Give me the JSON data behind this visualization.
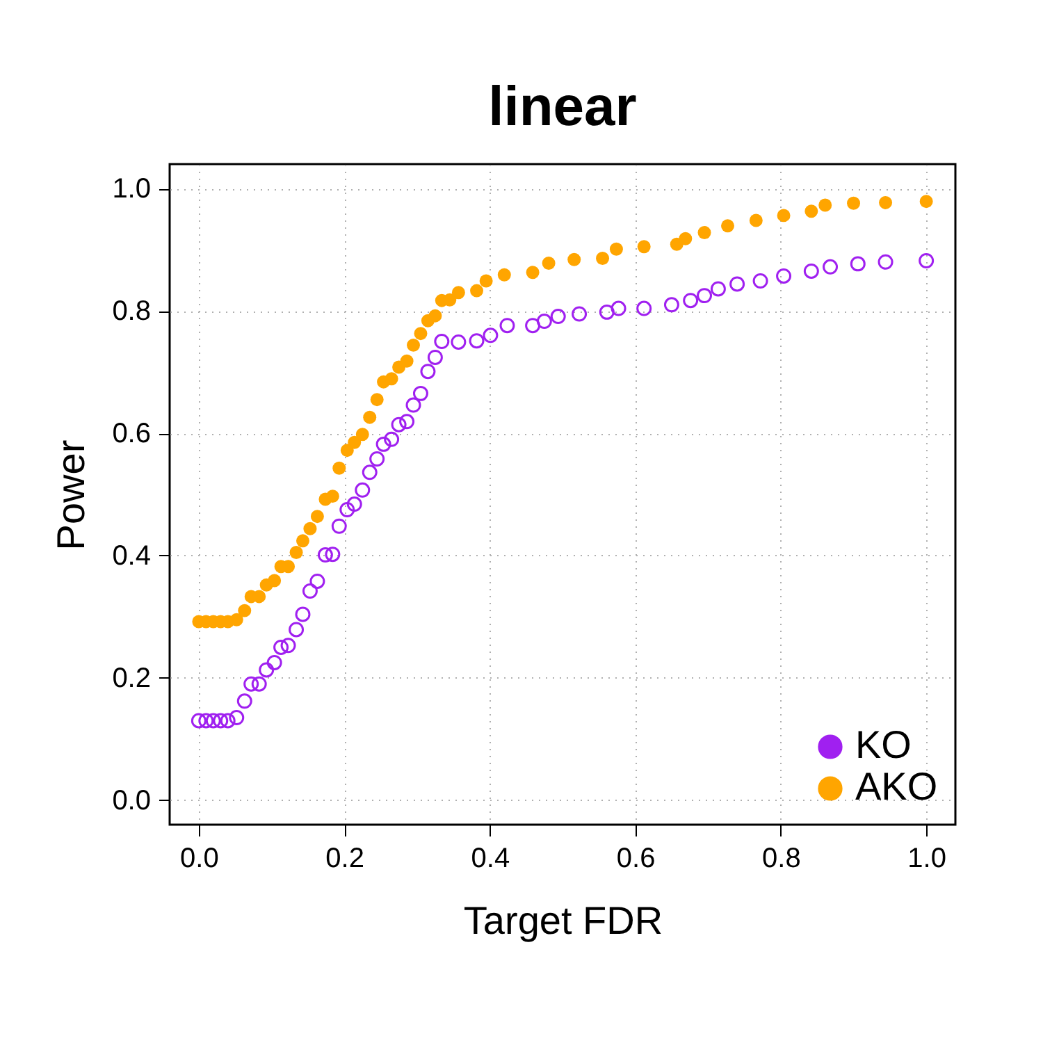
{
  "chart_data": {
    "type": "scatter",
    "title": "linear",
    "xlabel": "Target FDR",
    "ylabel": "Power",
    "xlim": [
      -0.04,
      1.04
    ],
    "ylim": [
      -0.04,
      1.04
    ],
    "xticks": [
      {
        "value": 0,
        "label": "0.0"
      },
      {
        "value": 0.2,
        "label": "0.2"
      },
      {
        "value": 0.4,
        "label": "0.4"
      },
      {
        "value": 0.6,
        "label": "0.6"
      },
      {
        "value": 0.8,
        "label": "0.8"
      },
      {
        "value": 1,
        "label": "1.0"
      }
    ],
    "yticks": [
      {
        "value": 0,
        "label": "0.0"
      },
      {
        "value": 0.2,
        "label": "0.2"
      },
      {
        "value": 0.4,
        "label": "0.4"
      },
      {
        "value": 0.6,
        "label": "0.6"
      },
      {
        "value": 0.8,
        "label": "0.8"
      },
      {
        "value": 1,
        "label": "1.0"
      }
    ],
    "grid": true,
    "legend": "bottom right",
    "marker": "circle",
    "series": [
      {
        "name": "KO",
        "color": "#a020f0",
        "x": [
          0,
          0.01,
          0.02,
          0.03,
          0.04,
          0.052,
          0.063,
          0.072,
          0.083,
          0.093,
          0.104,
          0.113,
          0.123,
          0.134,
          0.143,
          0.153,
          0.163,
          0.174,
          0.184,
          0.193,
          0.204,
          0.214,
          0.225,
          0.235,
          0.245,
          0.254,
          0.265,
          0.275,
          0.286,
          0.295,
          0.305,
          0.315,
          0.325,
          0.334,
          0.357,
          0.382,
          0.401,
          0.424,
          0.459,
          0.475,
          0.494,
          0.523,
          0.561,
          0.577,
          0.612,
          0.65,
          0.676,
          0.695,
          0.714,
          0.74,
          0.772,
          0.804,
          0.842,
          0.868,
          0.906,
          0.944,
          1.0
        ],
        "values": [
          0.13,
          0.13,
          0.13,
          0.13,
          0.13,
          0.135,
          0.162,
          0.19,
          0.19,
          0.213,
          0.225,
          0.25,
          0.253,
          0.279,
          0.304,
          0.342,
          0.358,
          0.401,
          0.402,
          0.448,
          0.475,
          0.484,
          0.507,
          0.536,
          0.558,
          0.582,
          0.59,
          0.614,
          0.619,
          0.646,
          0.665,
          0.701,
          0.724,
          0.75,
          0.749,
          0.751,
          0.76,
          0.776,
          0.776,
          0.783,
          0.791,
          0.795,
          0.798,
          0.804,
          0.804,
          0.81,
          0.817,
          0.825,
          0.836,
          0.844,
          0.849,
          0.857,
          0.865,
          0.872,
          0.877,
          0.88,
          0.882
        ]
      },
      {
        "name": "AKO",
        "color": "#ffa500",
        "x": [
          0,
          0.01,
          0.02,
          0.03,
          0.04,
          0.052,
          0.063,
          0.072,
          0.083,
          0.093,
          0.104,
          0.113,
          0.123,
          0.134,
          0.143,
          0.153,
          0.163,
          0.174,
          0.184,
          0.193,
          0.204,
          0.214,
          0.225,
          0.235,
          0.245,
          0.254,
          0.265,
          0.275,
          0.286,
          0.295,
          0.305,
          0.315,
          0.325,
          0.334,
          0.345,
          0.357,
          0.382,
          0.395,
          0.42,
          0.459,
          0.481,
          0.516,
          0.555,
          0.574,
          0.612,
          0.657,
          0.669,
          0.695,
          0.727,
          0.766,
          0.804,
          0.842,
          0.861,
          0.9,
          0.944,
          1.0
        ],
        "values": [
          0.292,
          0.292,
          0.292,
          0.292,
          0.292,
          0.295,
          0.31,
          0.333,
          0.333,
          0.352,
          0.359,
          0.382,
          0.382,
          0.405,
          0.424,
          0.444,
          0.464,
          0.492,
          0.497,
          0.543,
          0.572,
          0.585,
          0.598,
          0.626,
          0.655,
          0.684,
          0.689,
          0.708,
          0.718,
          0.744,
          0.763,
          0.784,
          0.792,
          0.817,
          0.818,
          0.83,
          0.833,
          0.849,
          0.859,
          0.863,
          0.878,
          0.884,
          0.886,
          0.901,
          0.905,
          0.909,
          0.918,
          0.928,
          0.939,
          0.948,
          0.956,
          0.963,
          0.973,
          0.976,
          0.977,
          0.979
        ]
      }
    ]
  }
}
